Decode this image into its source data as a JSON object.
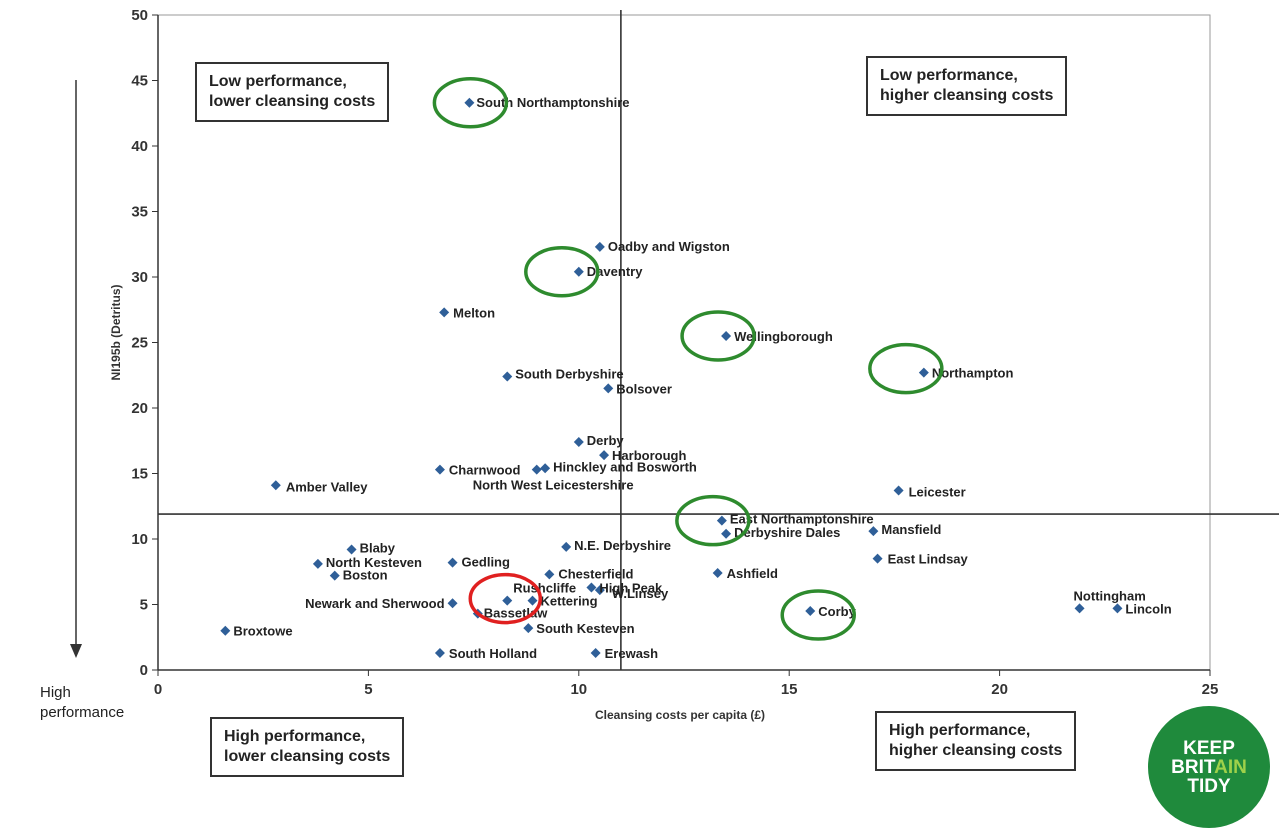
{
  "chart_data": {
    "type": "scatter",
    "title": "",
    "xlabel": "Cleansing costs per capita (£)",
    "ylabel": "NI195b (Detritus)",
    "xlim": [
      0,
      25
    ],
    "ylim": [
      0,
      50
    ],
    "x_ticks": [
      "0",
      "5",
      "10",
      "15",
      "20",
      "25"
    ],
    "y_ticks": [
      "0",
      "5",
      "10",
      "15",
      "20",
      "25",
      "30",
      "35",
      "40",
      "45",
      "50"
    ],
    "divider_x": 11,
    "divider_y": 11.9,
    "marker_color": "#2f5f98",
    "points": [
      {
        "name": "South Northamptonshire",
        "x": 7.4,
        "y": 43.3
      },
      {
        "name": "Oadby and Wigston",
        "x": 10.5,
        "y": 32.3
      },
      {
        "name": "Daventry",
        "x": 10.0,
        "y": 30.4
      },
      {
        "name": "Melton",
        "x": 6.8,
        "y": 27.3
      },
      {
        "name": "Wellingborough",
        "x": 13.5,
        "y": 25.5
      },
      {
        "name": "Northampton",
        "x": 18.2,
        "y": 22.7
      },
      {
        "name": "South Derbyshire",
        "x": 8.3,
        "y": 22.4
      },
      {
        "name": "Bolsover",
        "x": 10.7,
        "y": 21.5
      },
      {
        "name": "Derby",
        "x": 10.0,
        "y": 17.4
      },
      {
        "name": "Harborough",
        "x": 10.6,
        "y": 16.4
      },
      {
        "name": "Charnwood",
        "x": 6.7,
        "y": 15.3
      },
      {
        "name": "Hinckley and Bosworth",
        "x": 9.2,
        "y": 15.4
      },
      {
        "name": "North West Leicestershire",
        "x": 9.0,
        "y": 15.3
      },
      {
        "name": "Amber Valley",
        "x": 2.8,
        "y": 14.1
      },
      {
        "name": "Leicester",
        "x": 17.6,
        "y": 13.7
      },
      {
        "name": "East Northamptonshire",
        "x": 13.4,
        "y": 11.4
      },
      {
        "name": "Derbyshire Dales",
        "x": 13.5,
        "y": 10.4
      },
      {
        "name": "Mansfield",
        "x": 17.0,
        "y": 10.6
      },
      {
        "name": "Blaby",
        "x": 4.6,
        "y": 9.2
      },
      {
        "name": "N.E. Derbyshire",
        "x": 9.7,
        "y": 9.4
      },
      {
        "name": "East Lindsay",
        "x": 17.1,
        "y": 8.5
      },
      {
        "name": "North Kesteven",
        "x": 3.8,
        "y": 8.1
      },
      {
        "name": "Gedling",
        "x": 7.0,
        "y": 8.2
      },
      {
        "name": "Boston",
        "x": 4.2,
        "y": 7.2
      },
      {
        "name": "Chesterfield",
        "x": 9.3,
        "y": 7.3
      },
      {
        "name": "Ashfield",
        "x": 13.3,
        "y": 7.4
      },
      {
        "name": "Rushcliffe",
        "x": 8.3,
        "y": 5.3
      },
      {
        "name": "High Peak",
        "x": 10.3,
        "y": 6.3
      },
      {
        "name": "Kettering",
        "x": 8.9,
        "y": 5.3
      },
      {
        "name": "W.Linsey",
        "x": 10.5,
        "y": 6.1
      },
      {
        "name": "Newark and Sherwood",
        "x": 7.0,
        "y": 5.1
      },
      {
        "name": "Bassetlaw",
        "x": 7.6,
        "y": 4.3
      },
      {
        "name": "Corby",
        "x": 15.5,
        "y": 4.5
      },
      {
        "name": "Nottingham",
        "x": 21.9,
        "y": 4.7
      },
      {
        "name": "Lincoln",
        "x": 22.8,
        "y": 4.7
      },
      {
        "name": "South Kesteven",
        "x": 8.8,
        "y": 3.2
      },
      {
        "name": "Broxtowe",
        "x": 1.6,
        "y": 3.0
      },
      {
        "name": "South Holland",
        "x": 6.7,
        "y": 1.3
      },
      {
        "name": "Erewash",
        "x": 10.4,
        "y": 1.3
      }
    ],
    "highlighted": {
      "green": [
        "South Northamptonshire",
        "Daventry",
        "Wellingborough",
        "Northampton",
        "East Northamptonshire",
        "Corby"
      ],
      "red": [
        "Rushcliffe"
      ]
    }
  },
  "quadrants": {
    "top_left": [
      "Low performance,",
      "lower cleansing costs"
    ],
    "top_right": [
      "Low performance,",
      "higher cleansing costs"
    ],
    "bottom_left": [
      "High performance,",
      "lower cleansing costs"
    ],
    "bottom_right": [
      "High performance,",
      "higher cleansing costs"
    ]
  },
  "side_label": [
    "High",
    "performance"
  ],
  "logo": {
    "line1": "KEEP",
    "line2a": "BRIT",
    "line2b": "AIN",
    "line3": "TIDY"
  },
  "colors": {
    "highlight_green": "#2e8b2e",
    "highlight_red": "#e02020",
    "logo_green": "#1f8a3c"
  }
}
